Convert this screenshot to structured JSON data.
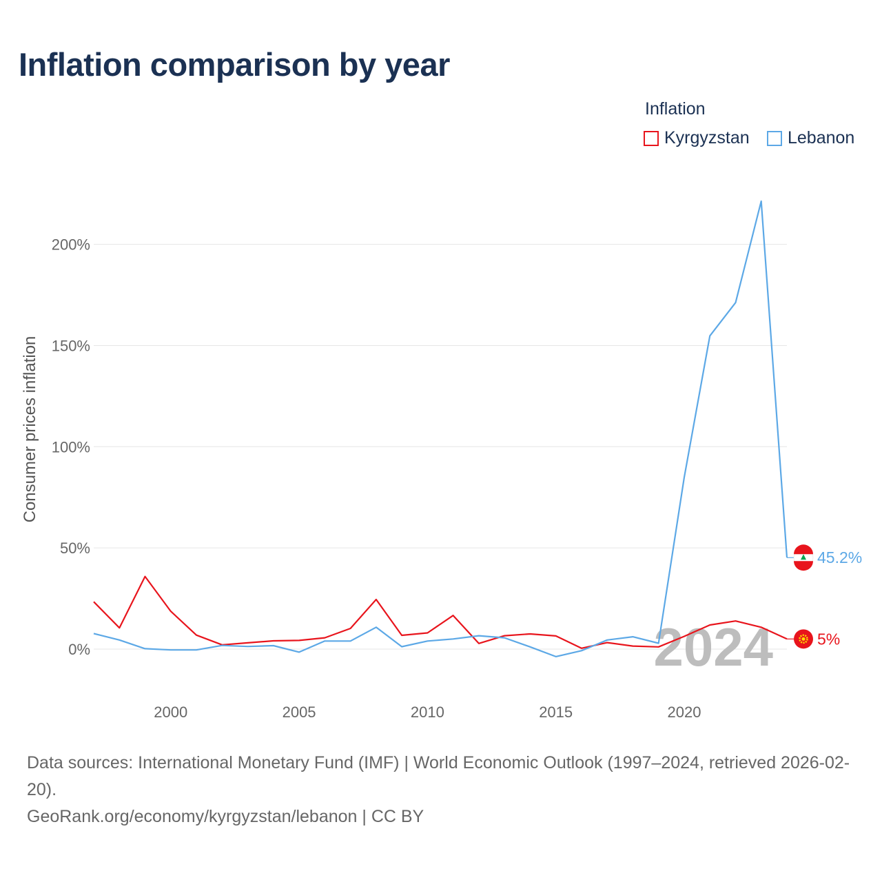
{
  "chart_data": {
    "type": "line",
    "title": "Inflation comparison by year",
    "ylabel": "Consumer prices inflation",
    "xlabel": "",
    "legend_title": "Inflation",
    "legend_position": "top-right",
    "x": [
      1997,
      1998,
      1999,
      2000,
      2001,
      2002,
      2003,
      2004,
      2005,
      2006,
      2007,
      2008,
      2009,
      2010,
      2011,
      2012,
      2013,
      2014,
      2015,
      2016,
      2017,
      2018,
      2019,
      2020,
      2021,
      2022,
      2023,
      2024
    ],
    "xlim": [
      1997,
      2024
    ],
    "ylim": [
      -15,
      220
    ],
    "x_ticks": [
      2000,
      2005,
      2010,
      2015,
      2020
    ],
    "y_ticks": [
      0,
      50,
      100,
      150,
      200
    ],
    "y_tick_labels": [
      "0%",
      "50%",
      "100%",
      "150%",
      "200%"
    ],
    "x_tick_labels": [
      "2000",
      "2005",
      "2010",
      "2015",
      "2020"
    ],
    "series": [
      {
        "name": "Kyrgyzstan",
        "color": "#e8141c",
        "values": [
          23.4,
          10.5,
          35.9,
          18.7,
          6.9,
          2.1,
          3.1,
          4.1,
          4.3,
          5.6,
          10.2,
          24.5,
          6.8,
          8.0,
          16.6,
          2.8,
          6.6,
          7.5,
          6.5,
          0.4,
          3.2,
          1.5,
          1.1,
          6.3,
          11.9,
          13.9,
          10.8,
          5.0
        ],
        "end_label": "5%"
      },
      {
        "name": "Lebanon",
        "color": "#5ca8e6",
        "values": [
          7.7,
          4.5,
          0.2,
          -0.4,
          -0.4,
          1.8,
          1.3,
          1.7,
          -1.5,
          4.0,
          4.0,
          10.8,
          1.2,
          4.0,
          5.0,
          6.6,
          5.6,
          1.1,
          -3.7,
          -0.8,
          4.5,
          6.1,
          2.9,
          84.9,
          154.8,
          171.2,
          221.3,
          45.2
        ],
        "end_label": "45.2%"
      }
    ],
    "current_year": "2024"
  },
  "legend": {
    "title": "Inflation",
    "items": [
      "Kyrgyzstan",
      "Lebanon"
    ]
  },
  "footer": {
    "sources": "Data sources: International Monetary Fund (IMF) | World Economic Outlook (1997–2024, retrieved 2026-02-20).",
    "credit": "GeoRank.org/economy/kyrgyzstan/lebanon | CC BY"
  },
  "flags": {
    "lebanon": "flag-lebanon-icon",
    "kyrgyzstan": "flag-kyrgyzstan-icon"
  }
}
